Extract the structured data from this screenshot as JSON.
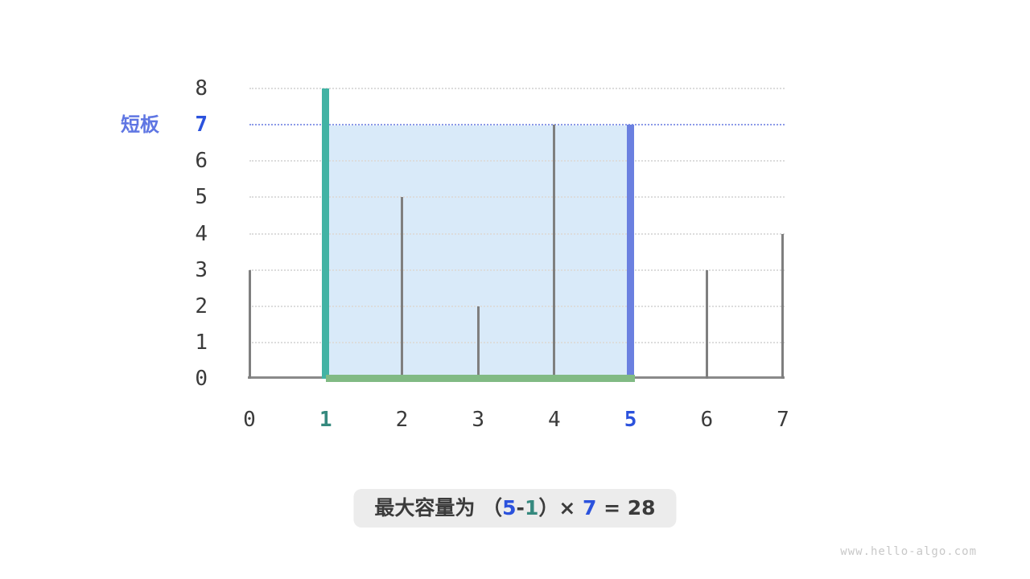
{
  "labels": {
    "short_board": "短板"
  },
  "formula": {
    "parts": [
      {
        "text": "最大容量为 （",
        "color": "dark"
      },
      {
        "text": "5",
        "color": "blue"
      },
      {
        "text": "-",
        "color": "dark"
      },
      {
        "text": "1",
        "color": "teal"
      },
      {
        "text": "）× ",
        "color": "dark"
      },
      {
        "text": "7",
        "color": "blue"
      },
      {
        "text": " = ",
        "color": "dark"
      },
      {
        "text": "28",
        "color": "dark-num"
      }
    ]
  },
  "watermark": "www.hello-algo.com",
  "chart_data": {
    "type": "bar",
    "title": "",
    "xlabel": "",
    "ylabel": "",
    "x": [
      0,
      1,
      2,
      3,
      4,
      5,
      6,
      7
    ],
    "heights": [
      3,
      8,
      5,
      2,
      7,
      7,
      3,
      4
    ],
    "xticks": [
      "0",
      "1",
      "2",
      "3",
      "4",
      "5",
      "6",
      "7"
    ],
    "yticks": [
      "0",
      "1",
      "2",
      "3",
      "4",
      "5",
      "6",
      "7",
      "8"
    ],
    "ylim": [
      0,
      8
    ],
    "xlim": [
      0,
      7
    ],
    "grid": true,
    "legend": "none",
    "highlight": {
      "left_index": 1,
      "right_index": 5,
      "water_level": 7,
      "width": 4,
      "capacity": 28
    },
    "colors": {
      "left_bar": "#42b3a4",
      "right_bar": "#6b80e0",
      "bar": "#7f7f7f",
      "water_fill": "#d9eaf9",
      "base_line": "#81ba84",
      "axis": "#8a8a8a",
      "gridline": "#dcdcdc",
      "level_line": "#8b9ae8",
      "teal_text": "#35897e",
      "blue_text": "#2b52dd",
      "dark_text": "#3b3b3b",
      "short_board_label": "#5f76e3"
    }
  }
}
